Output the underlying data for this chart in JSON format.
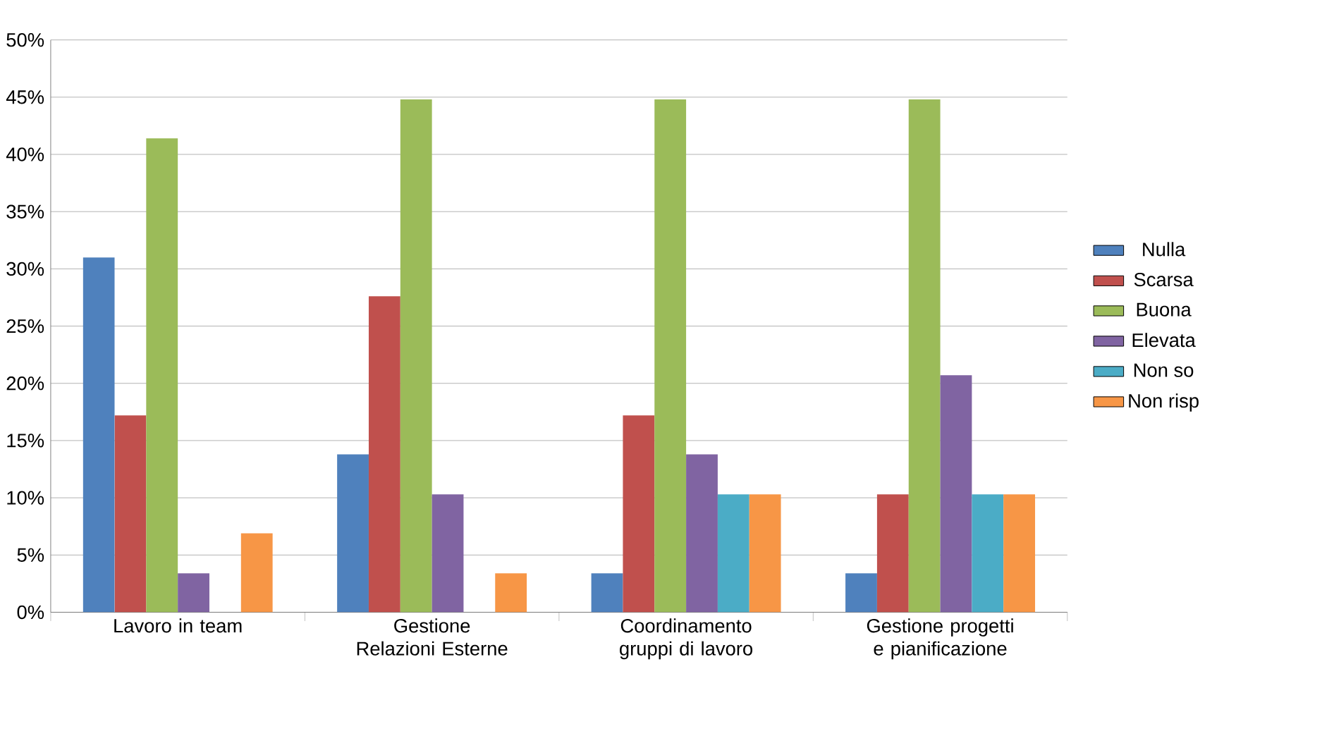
{
  "chart_data": {
    "type": "bar",
    "categories": [
      "Lavoro in team",
      "Gestione Relazioni Esterne",
      "Coordinamento gruppi di lavoro",
      "Gestione progetti e pianificazione"
    ],
    "series": [
      {
        "name": "Nulla",
        "color": "#4f81bd",
        "values": [
          31.0,
          13.8,
          3.4,
          3.4
        ]
      },
      {
        "name": "Scarsa",
        "color": "#c0504d",
        "values": [
          17.2,
          27.6,
          17.2,
          10.3
        ]
      },
      {
        "name": "Buona",
        "color": "#9bbb59",
        "values": [
          41.4,
          44.8,
          44.8,
          44.8
        ]
      },
      {
        "name": "Elevata",
        "color": "#8064a2",
        "values": [
          3.4,
          10.3,
          13.8,
          20.7
        ]
      },
      {
        "name": "Non so",
        "color": "#4bacc6",
        "values": [
          0,
          0,
          10.3,
          10.3
        ]
      },
      {
        "name": "Non risp",
        "color": "#f79646",
        "values": [
          6.9,
          3.4,
          10.3,
          10.3
        ]
      }
    ],
    "ylim": [
      0,
      50
    ],
    "yticks": [
      {
        "value": 0,
        "label": "0%"
      },
      {
        "value": 5,
        "label": "5%"
      },
      {
        "value": 10,
        "label": "10%"
      },
      {
        "value": 15,
        "label": "15%"
      },
      {
        "value": 20,
        "label": "20%"
      },
      {
        "value": 25,
        "label": "25%"
      },
      {
        "value": 30,
        "label": "30%"
      },
      {
        "value": 35,
        "label": "35%"
      },
      {
        "value": 40,
        "label": "40%"
      },
      {
        "value": 45,
        "label": "45%"
      },
      {
        "value": 50,
        "label": "50%"
      }
    ],
    "grid": "y",
    "legend": "right"
  }
}
